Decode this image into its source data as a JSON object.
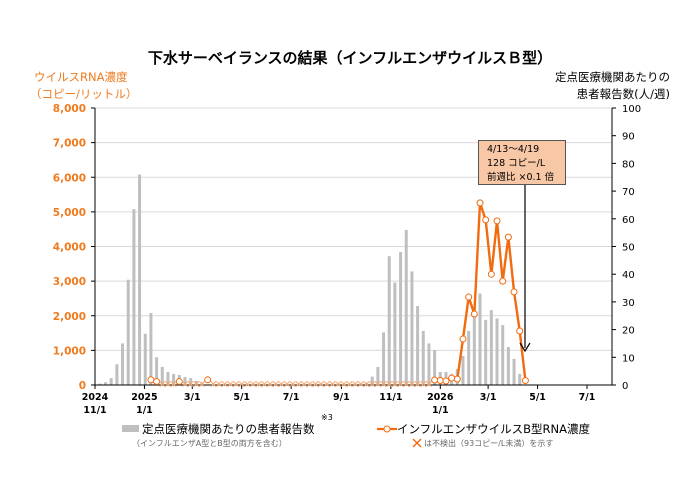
{
  "colors": {
    "rna": "#f26b0f",
    "rna_light": "#f9a56a",
    "bars": "#bfbfbf",
    "grid": "#d9d9d9",
    "left_axis": "#f07a1e"
  },
  "title": "下水サーベイランスの結果（インフルエンザウイルスＢ型）",
  "left_axis_title": {
    "line1": "ウイルスRNA濃度",
    "line2": "（コピー/リットル）"
  },
  "right_axis_title": {
    "line1": "定点医療機関あたりの",
    "line2": "患者報告数(人/週)"
  },
  "annotation": {
    "line1": "4/13～4/19",
    "line2": "128 コピー/L",
    "line3": "前週比 ×0.1 倍"
  },
  "legend": {
    "bars_label": "定点医療機関あたりの患者報告数",
    "bars_note_mark": "※3",
    "bars_sub": "（インフルエンザA型とB型の両方を含む）",
    "line_label": "インフルエンザウイルスB型RNA濃度",
    "line_sub": "は不検出（93コピー/L未満）を示す",
    "nd_icon": "cross-icon"
  },
  "chart_data": {
    "type": "bar+line",
    "left_axis": {
      "ylim": [
        0,
        8000
      ],
      "ticks": [
        "0",
        "1,000",
        "2,000",
        "3,000",
        "4,000",
        "5,000",
        "6,000",
        "7,000",
        "8,000"
      ]
    },
    "right_axis": {
      "ylim": [
        0,
        100
      ],
      "ticks": [
        "0",
        "10",
        "20",
        "30",
        "40",
        "50",
        "60",
        "70",
        "80",
        "90",
        "100"
      ]
    },
    "grid": true,
    "x_ticks": [
      {
        "date": "2024-11-01",
        "line1": "2024",
        "line2": "11/1"
      },
      {
        "date": "2025-01-01",
        "line1": "2025",
        "line2": "1/1"
      },
      {
        "date": "2025-03-01",
        "line1": "3/1",
        "line2": ""
      },
      {
        "date": "2025-05-01",
        "line1": "5/1",
        "line2": ""
      },
      {
        "date": "2025-07-01",
        "line1": "7/1",
        "line2": ""
      },
      {
        "date": "2025-09-01",
        "line1": "9/1",
        "line2": ""
      },
      {
        "date": "2025-11-01",
        "line1": "11/1",
        "line2": ""
      },
      {
        "date": "2026-01-01",
        "line1": "2026",
        "line2": "1/1"
      },
      {
        "date": "2026-03-01",
        "line1": "3/1",
        "line2": ""
      },
      {
        "date": "2026-05-01",
        "line1": "5/1",
        "line2": ""
      },
      {
        "date": "2026-07-01",
        "line1": "7/1",
        "line2": ""
      }
    ],
    "x_range": [
      "2024-11-01",
      "2026-07-31"
    ],
    "week_start": [
      "2024-11-04",
      "2024-11-11",
      "2024-11-18",
      "2024-11-25",
      "2024-12-02",
      "2024-12-09",
      "2024-12-16",
      "2024-12-23",
      "2024-12-30",
      "2025-01-06",
      "2025-01-13",
      "2025-01-20",
      "2025-01-27",
      "2025-02-03",
      "2025-02-10",
      "2025-02-17",
      "2025-02-24",
      "2025-03-03",
      "2025-03-10",
      "2025-03-17",
      "2025-03-24",
      "2025-03-31",
      "2025-04-07",
      "2025-04-14",
      "2025-04-21",
      "2025-04-28",
      "2025-05-05",
      "2025-05-12",
      "2025-05-19",
      "2025-05-26",
      "2025-06-02",
      "2025-06-09",
      "2025-06-16",
      "2025-06-23",
      "2025-06-30",
      "2025-07-07",
      "2025-07-14",
      "2025-07-21",
      "2025-07-28",
      "2025-08-04",
      "2025-08-11",
      "2025-08-18",
      "2025-08-25",
      "2025-09-01",
      "2025-09-08",
      "2025-09-15",
      "2025-09-22",
      "2025-09-29",
      "2025-10-06",
      "2025-10-13",
      "2025-10-20",
      "2025-10-27",
      "2025-11-03",
      "2025-11-10",
      "2025-11-17",
      "2025-11-24",
      "2025-12-01",
      "2025-12-08",
      "2025-12-15",
      "2025-12-22",
      "2025-12-29",
      "2026-01-05",
      "2026-01-12",
      "2026-01-19",
      "2026-01-26",
      "2026-02-02",
      "2026-02-09",
      "2026-02-16",
      "2026-02-23",
      "2026-03-02",
      "2026-03-09",
      "2026-03-16",
      "2026-03-23",
      "2026-03-30",
      "2026-04-06",
      "2026-04-13"
    ],
    "series": [
      {
        "name": "定点医療機関あたりの患者報告数",
        "axis": "right",
        "type": "bar",
        "values": [
          0.5,
          1,
          2.5,
          7.5,
          15,
          38,
          63.5,
          76,
          18.5,
          26,
          10,
          6.5,
          4.7,
          4,
          3.6,
          2.9,
          2.5,
          1.5,
          1,
          0,
          0,
          0,
          0,
          0,
          0,
          0,
          0,
          0,
          0,
          0,
          0,
          0,
          0,
          0,
          0,
          0,
          0,
          0,
          0,
          0,
          0,
          0,
          0,
          0,
          0,
          0,
          0.3,
          0.8,
          3,
          6.5,
          19,
          46.5,
          37,
          48,
          56,
          41,
          28.5,
          19.5,
          15,
          12.6,
          4.7,
          4.7,
          4,
          5.8,
          10.5,
          19.5,
          25,
          33,
          23.5,
          27,
          24,
          21.6,
          13.7,
          9.4,
          4,
          null
        ]
      },
      {
        "name": "インフルエンザウイルスB型RNA濃度",
        "axis": "left",
        "type": "line",
        "values": [
          null,
          null,
          null,
          null,
          null,
          null,
          null,
          null,
          null,
          150,
          100,
          "ND",
          "ND",
          "ND",
          100,
          "ND",
          "ND",
          "ND",
          "ND",
          150,
          "ND",
          "ND",
          "ND",
          "ND",
          "ND",
          "ND",
          "ND",
          "ND",
          "ND",
          "ND",
          "ND",
          "ND",
          "ND",
          "ND",
          "ND",
          "ND",
          "ND",
          "ND",
          "ND",
          "ND",
          "ND",
          "ND",
          "ND",
          "ND",
          "ND",
          "ND",
          "ND",
          "ND",
          "ND",
          "ND",
          "ND",
          "ND",
          "ND",
          "ND",
          "ND",
          "ND",
          "ND",
          "ND",
          "ND",
          144,
          130,
          115,
          200,
          170,
          1330,
          2540,
          2050,
          5260,
          4770,
          3200,
          4740,
          3000,
          4270,
          2690,
          1560,
          128
        ]
      }
    ]
  }
}
